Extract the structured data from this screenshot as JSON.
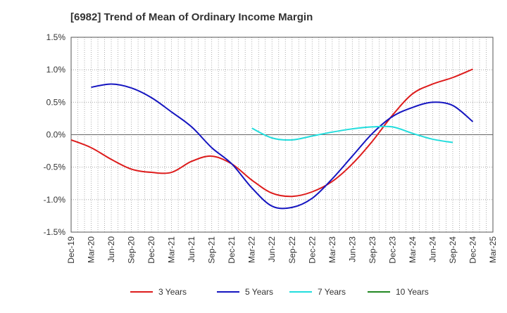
{
  "chart_data": {
    "type": "line",
    "title": "[6982]  Trend of Mean of Ordinary Income Margin",
    "xlabel": "",
    "ylabel": "",
    "ylim": [
      -1.5,
      1.5
    ],
    "y_ticks": [
      "1.5%",
      "1.0%",
      "0.5%",
      "0.0%",
      "-0.5%",
      "-1.0%",
      "-1.5%"
    ],
    "y_tick_values": [
      1.5,
      1.0,
      0.5,
      0.0,
      -0.5,
      -1.0,
      -1.5
    ],
    "x_ticks": [
      "Dec-19",
      "Mar-20",
      "Jun-20",
      "Sep-20",
      "Dec-20",
      "Mar-21",
      "Jun-21",
      "Sep-21",
      "Dec-21",
      "Mar-22",
      "Jun-22",
      "Sep-22",
      "Dec-22",
      "Mar-23",
      "Jun-23",
      "Sep-23",
      "Dec-23",
      "Mar-24",
      "Jun-24",
      "Sep-24",
      "Dec-24",
      "Mar-25"
    ],
    "grid": true,
    "legend_position": "bottom",
    "series": [
      {
        "name": "3 Years",
        "color": "#dd1c1c",
        "start_index": 0,
        "values": [
          -0.08,
          -0.2,
          -0.38,
          -0.53,
          -0.58,
          -0.58,
          -0.41,
          -0.33,
          -0.45,
          -0.7,
          -0.9,
          -0.95,
          -0.88,
          -0.72,
          -0.45,
          -0.1,
          0.3,
          0.63,
          0.78,
          0.88,
          1.01
        ]
      },
      {
        "name": "5 Years",
        "color": "#1515c0",
        "start_index": 1,
        "values": [
          0.73,
          0.78,
          0.72,
          0.57,
          0.35,
          0.12,
          -0.2,
          -0.45,
          -0.82,
          -1.1,
          -1.12,
          -0.98,
          -0.68,
          -0.33,
          0.02,
          0.28,
          0.42,
          0.5,
          0.45,
          0.2
        ]
      },
      {
        "name": "7 Years",
        "color": "#22dddd",
        "start_index": 9,
        "values": [
          0.1,
          -0.05,
          -0.08,
          -0.02,
          0.04,
          0.09,
          0.12,
          0.12,
          0.02,
          -0.07,
          -0.12
        ]
      },
      {
        "name": "10 Years",
        "color": "#228822",
        "start_index": 0,
        "values": []
      }
    ]
  }
}
